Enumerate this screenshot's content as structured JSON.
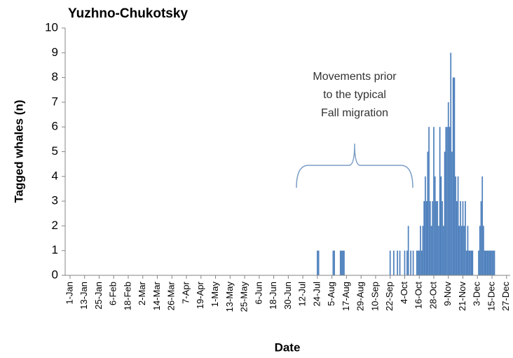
{
  "chart_data": {
    "type": "bar",
    "title": "Yuzhno-Chukotsky",
    "xlabel": "Date",
    "ylabel": "Tagged whales (n)",
    "annotation": [
      "Movements prior",
      "to the typical",
      "Fall migration"
    ],
    "color": "#4f81bd",
    "x": [
      205,
      206,
      218,
      219,
      224,
      225,
      226,
      227,
      265,
      268,
      271,
      273,
      277,
      279,
      280,
      282,
      284,
      287,
      288,
      289,
      290,
      291,
      292,
      293,
      294,
      295,
      296,
      297,
      298,
      299,
      300,
      301,
      302,
      303,
      304,
      305,
      306,
      307,
      308,
      309,
      310,
      311,
      312,
      313,
      314,
      315,
      316,
      317,
      318,
      319,
      320,
      321,
      322,
      323,
      324,
      325,
      326,
      327,
      328,
      329,
      330,
      331,
      332,
      333,
      338,
      339,
      340,
      341,
      342,
      343,
      344,
      345,
      346,
      347,
      348,
      349,
      350,
      351
    ],
    "values": [
      1,
      1,
      1,
      1,
      1,
      1,
      1,
      1,
      1,
      1,
      1,
      1,
      1,
      1,
      2,
      1,
      1,
      1,
      1,
      1,
      2,
      1,
      2,
      3,
      4,
      3,
      5,
      6,
      3,
      2,
      3,
      6,
      4,
      3,
      3,
      2,
      6,
      4,
      3,
      2,
      5,
      6,
      6,
      7,
      6,
      9,
      5,
      8,
      8,
      4,
      3,
      4,
      2,
      3,
      2,
      3,
      2,
      3,
      1,
      2,
      1,
      1,
      1,
      1,
      1,
      2,
      3,
      4,
      2,
      1,
      1,
      1,
      1,
      1,
      1,
      1,
      1,
      1
    ],
    "xlim": [
      -3,
      364
    ],
    "xticks": [
      {
        "value": 1,
        "label": "1-Jan"
      },
      {
        "value": 13,
        "label": "13-Jan"
      },
      {
        "value": 25,
        "label": "25-Jan"
      },
      {
        "value": 37,
        "label": "6-Feb"
      },
      {
        "value": 49,
        "label": "18-Feb"
      },
      {
        "value": 61,
        "label": "2-Mar"
      },
      {
        "value": 73,
        "label": "14-Mar"
      },
      {
        "value": 85,
        "label": "26-Mar"
      },
      {
        "value": 97,
        "label": "7-Apr"
      },
      {
        "value": 109,
        "label": "19-Apr"
      },
      {
        "value": 121,
        "label": "1-May"
      },
      {
        "value": 133,
        "label": "13-May"
      },
      {
        "value": 145,
        "label": "25-May"
      },
      {
        "value": 157,
        "label": "6-Jun"
      },
      {
        "value": 169,
        "label": "18-Jun"
      },
      {
        "value": 181,
        "label": "30-Jun"
      },
      {
        "value": 193,
        "label": "12-Jul"
      },
      {
        "value": 205,
        "label": "24-Jul"
      },
      {
        "value": 217,
        "label": "5-Aug"
      },
      {
        "value": 229,
        "label": "17-Aug"
      },
      {
        "value": 241,
        "label": "29-Aug"
      },
      {
        "value": 253,
        "label": "10-Sep"
      },
      {
        "value": 265,
        "label": "22-Sep"
      },
      {
        "value": 277,
        "label": "4-Oct"
      },
      {
        "value": 289,
        "label": "16-Oct"
      },
      {
        "value": 301,
        "label": "28-Oct"
      },
      {
        "value": 313,
        "label": "9-Nov"
      },
      {
        "value": 325,
        "label": "21-Nov"
      },
      {
        "value": 337,
        "label": "3-Dec"
      },
      {
        "value": 349,
        "label": "15-Dec"
      },
      {
        "value": 361,
        "label": "27-Dec"
      }
    ],
    "ylim": [
      0,
      10
    ],
    "yticks": [
      0,
      1,
      2,
      3,
      4,
      5,
      6,
      7,
      8,
      9,
      10
    ],
    "grid": false
  }
}
